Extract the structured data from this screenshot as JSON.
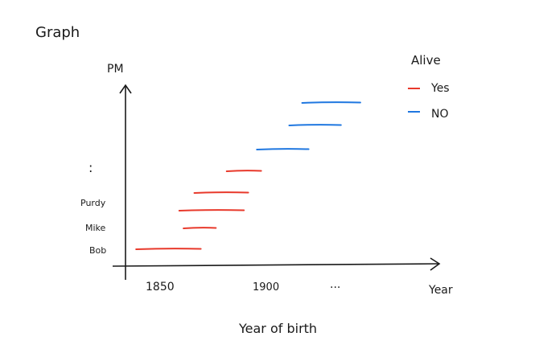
{
  "heading": "Graph",
  "chart_data": {
    "type": "line",
    "ylabel": "PM",
    "xlabel": "Year",
    "caption": "Year of birth",
    "xticks": [
      "1850",
      "1900",
      "..."
    ],
    "ycategories": [
      "Bob",
      "Mike",
      "Purdy",
      ":"
    ],
    "legend": {
      "title": "Alive",
      "placement": "top-right",
      "entries": [
        {
          "label": "Yes",
          "color": "#e8392b"
        },
        {
          "label": "NO",
          "color": "#1f77e0"
        }
      ]
    },
    "segments": [
      {
        "start": 1840,
        "end": 1870,
        "alive": "Yes"
      },
      {
        "start": 1862,
        "end": 1877,
        "alive": "Yes"
      },
      {
        "start": 1860,
        "end": 1890,
        "alive": "Yes"
      },
      {
        "start": 1867,
        "end": 1892,
        "alive": "Yes"
      },
      {
        "start": 1882,
        "end": 1898,
        "alive": "Yes"
      },
      {
        "start": 1896,
        "end": 1920,
        "alive": "NO"
      },
      {
        "start": 1911,
        "end": 1935,
        "alive": "NO"
      },
      {
        "start": 1917,
        "end": 1944,
        "alive": "NO"
      }
    ]
  }
}
